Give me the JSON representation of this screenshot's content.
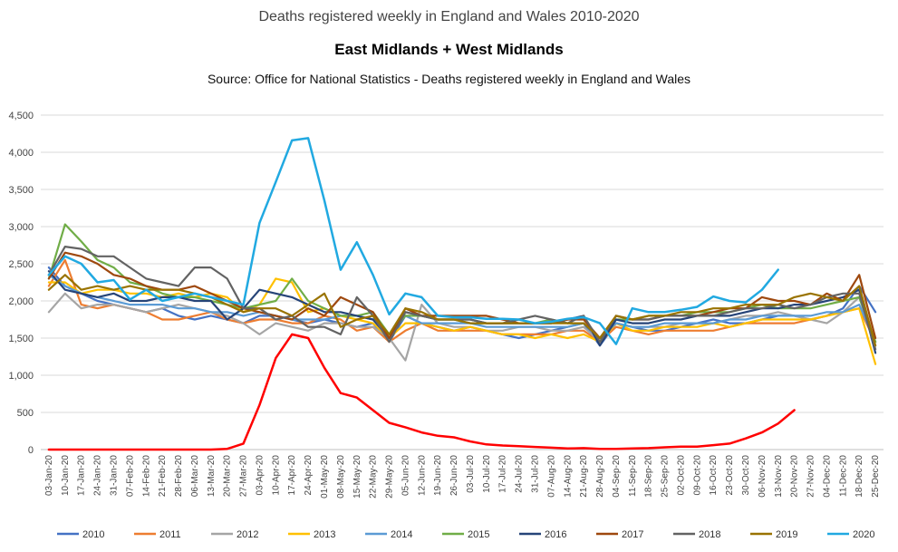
{
  "chart_data": {
    "type": "line",
    "title": "Deaths registered weekly in England and Wales 2010-2020",
    "subtitle": "East Midlands + West Midlands",
    "source": "Source: Office for National Statistics - Deaths registered weekly in England and Wales",
    "ylim": [
      0,
      4500
    ],
    "yticks": [
      "0",
      "500",
      "1,000",
      "1,500",
      "2,000",
      "2,500",
      "3,000",
      "3,500",
      "4,000",
      "4,500"
    ],
    "grid": true,
    "legend_position": "bottom",
    "categories": [
      "03-Jan-20",
      "10-Jan-20",
      "17-Jan-20",
      "24-Jan-20",
      "31-Jan-20",
      "07-Feb-20",
      "14-Feb-20",
      "21-Feb-20",
      "28-Feb-20",
      "06-Mar-20",
      "13-Mar-20",
      "20-Mar-20",
      "27-Mar-20",
      "03-Apr-20",
      "10-Apr-20",
      "17-Apr-20",
      "24-Apr-20",
      "01-May-20",
      "08-May-20",
      "15-May-20",
      "22-May-20",
      "29-May-20",
      "05-Jun-20",
      "12-Jun-20",
      "19-Jun-20",
      "26-Jun-20",
      "03-Jul-20",
      "10-Jul-20",
      "17-Jul-20",
      "24-Jul-20",
      "31-Jul-20",
      "07-Aug-20",
      "14-Aug-20",
      "21-Aug-20",
      "28-Aug-20",
      "04-Sep-20",
      "11-Sep-20",
      "18-Sep-20",
      "25-Sep-20",
      "02-Oct-20",
      "09-Oct-20",
      "16-Oct-20",
      "23-Oct-20",
      "30-Oct-20",
      "06-Nov-20",
      "13-Nov-20",
      "20-Nov-20",
      "27-Nov-20",
      "04-Dec-20",
      "11-Dec-20",
      "18-Dec-20",
      "25-Dec-20"
    ],
    "series": [
      {
        "name": "2010",
        "color": "#4472C4",
        "values": [
          2450,
          2200,
          2100,
          2000,
          1950,
          1900,
          1850,
          1900,
          1800,
          1750,
          1800,
          1750,
          1700,
          1800,
          1800,
          1750,
          1700,
          1750,
          1700,
          1650,
          1700,
          1450,
          1800,
          1700,
          1650,
          1600,
          1650,
          1600,
          1550,
          1500,
          1550,
          1600,
          1650,
          1700,
          1400,
          1700,
          1650,
          1600,
          1600,
          1650,
          1700,
          1750,
          1700,
          1700,
          1750,
          1800,
          1800,
          1750,
          1800,
          1900,
          2200,
          1850
        ]
      },
      {
        "name": "2011",
        "color": "#ED7D31",
        "values": [
          2200,
          2550,
          1950,
          1900,
          1950,
          1900,
          1850,
          1750,
          1750,
          1800,
          1850,
          1750,
          1700,
          1750,
          1750,
          1700,
          1700,
          1800,
          1750,
          1600,
          1650,
          1450,
          1600,
          1700,
          1600,
          1600,
          1600,
          1600,
          1550,
          1550,
          1550,
          1550,
          1600,
          1600,
          1450,
          1650,
          1600,
          1550,
          1600,
          1600,
          1600,
          1600,
          1650,
          1700,
          1700,
          1700,
          1700,
          1750,
          1800,
          1850,
          1900,
          1450
        ]
      },
      {
        "name": "2012",
        "color": "#A5A5A5",
        "values": [
          1850,
          2100,
          1900,
          1950,
          1950,
          1900,
          1850,
          1900,
          1950,
          1900,
          1850,
          1800,
          1700,
          1550,
          1700,
          1650,
          1600,
          1700,
          1700,
          1650,
          1650,
          1500,
          1200,
          1950,
          1700,
          1650,
          1650,
          1600,
          1600,
          1650,
          1650,
          1600,
          1600,
          1650,
          1450,
          1700,
          1650,
          1650,
          1650,
          1700,
          1700,
          1700,
          1750,
          1800,
          1800,
          1850,
          1800,
          1750,
          1700,
          1850,
          2050,
          1400
        ]
      },
      {
        "name": "2013",
        "color": "#FFC000",
        "values": [
          2250,
          2250,
          2100,
          2150,
          2150,
          2100,
          2100,
          2050,
          2100,
          2050,
          2100,
          2050,
          1850,
          1950,
          2300,
          2250,
          1850,
          1900,
          1800,
          1750,
          1700,
          1500,
          1700,
          1700,
          1650,
          1600,
          1650,
          1600,
          1550,
          1550,
          1500,
          1550,
          1500,
          1550,
          1450,
          1700,
          1600,
          1600,
          1650,
          1650,
          1650,
          1700,
          1650,
          1700,
          1750,
          1750,
          1750,
          1750,
          1800,
          1850,
          1900,
          1150
        ]
      },
      {
        "name": "2014",
        "color": "#5B9BD5",
        "values": [
          2350,
          2200,
          2100,
          2050,
          2000,
          1950,
          1950,
          1950,
          1900,
          1900,
          1850,
          1850,
          1800,
          1850,
          1800,
          1750,
          1750,
          1750,
          1800,
          1800,
          1750,
          1550,
          1800,
          1700,
          1700,
          1700,
          1700,
          1650,
          1650,
          1650,
          1650,
          1650,
          1650,
          1700,
          1500,
          1700,
          1650,
          1650,
          1700,
          1700,
          1700,
          1700,
          1750,
          1750,
          1800,
          1800,
          1800,
          1800,
          1850,
          1850,
          1950,
          1450
        ]
      },
      {
        "name": "2015",
        "color": "#70AD47",
        "values": [
          2300,
          3030,
          2800,
          2550,
          2450,
          2250,
          2200,
          2100,
          2050,
          2050,
          2000,
          1950,
          1900,
          1950,
          2000,
          2300,
          2000,
          1900,
          1800,
          1800,
          1850,
          1550,
          1800,
          1800,
          1750,
          1750,
          1700,
          1700,
          1700,
          1700,
          1700,
          1750,
          1700,
          1700,
          1500,
          1750,
          1750,
          1800,
          1800,
          1800,
          1850,
          1850,
          1850,
          1900,
          1950,
          1900,
          1900,
          1900,
          1950,
          2000,
          2050,
          1450
        ]
      },
      {
        "name": "2016",
        "color": "#264478",
        "values": [
          2400,
          2150,
          2100,
          2050,
          2100,
          2000,
          2000,
          2050,
          2050,
          2000,
          2000,
          1750,
          1900,
          2150,
          2100,
          2050,
          1950,
          1850,
          1850,
          1800,
          1750,
          1500,
          1850,
          1800,
          1750,
          1750,
          1750,
          1700,
          1700,
          1700,
          1700,
          1700,
          1750,
          1800,
          1400,
          1750,
          1700,
          1700,
          1750,
          1750,
          1800,
          1800,
          1800,
          1850,
          1900,
          1900,
          1950,
          1950,
          2000,
          2050,
          2150,
          1300
        ]
      },
      {
        "name": "2017",
        "color": "#9E480E",
        "values": [
          2300,
          2650,
          2600,
          2500,
          2350,
          2300,
          2200,
          2150,
          2150,
          2200,
          2100,
          2000,
          1900,
          1850,
          1800,
          1750,
          1900,
          1800,
          2050,
          1950,
          1850,
          1500,
          1900,
          1800,
          1800,
          1800,
          1800,
          1800,
          1750,
          1700,
          1700,
          1700,
          1750,
          1750,
          1500,
          1800,
          1750,
          1750,
          1800,
          1800,
          1800,
          1850,
          1900,
          1900,
          2050,
          2000,
          2000,
          1950,
          2100,
          2000,
          2350,
          1500
        ]
      },
      {
        "name": "2018",
        "color": "#636363",
        "values": [
          2350,
          2730,
          2700,
          2600,
          2600,
          2450,
          2300,
          2250,
          2200,
          2450,
          2450,
          2300,
          1900,
          1900,
          1750,
          1800,
          1650,
          1650,
          1550,
          2050,
          1800,
          1450,
          1850,
          1800,
          1750,
          1750,
          1750,
          1700,
          1700,
          1750,
          1800,
          1750,
          1700,
          1800,
          1450,
          1800,
          1750,
          1750,
          1800,
          1800,
          1800,
          1800,
          1850,
          1900,
          1900,
          1950,
          1900,
          1950,
          2050,
          2100,
          2100,
          1350
        ]
      },
      {
        "name": "2019",
        "color": "#997300",
        "values": [
          2150,
          2350,
          2150,
          2200,
          2150,
          2200,
          2150,
          2150,
          2150,
          2100,
          2050,
          1950,
          1850,
          1900,
          1900,
          1800,
          1950,
          2100,
          1650,
          1750,
          1800,
          1550,
          1900,
          1850,
          1750,
          1750,
          1700,
          1700,
          1700,
          1700,
          1700,
          1700,
          1700,
          1700,
          1500,
          1800,
          1750,
          1800,
          1800,
          1850,
          1850,
          1900,
          1900,
          1950,
          1950,
          1950,
          2050,
          2100,
          2050,
          2000,
          2200,
          1400
        ]
      },
      {
        "name": "2020",
        "color": "#21A9E1",
        "values": [
          2350,
          2600,
          2500,
          2250,
          2280,
          2020,
          2150,
          2000,
          2050,
          2100,
          2050,
          2000,
          1950,
          3050,
          3600,
          4160,
          4190,
          3350,
          2420,
          2790,
          2350,
          1820,
          2100,
          2050,
          1800,
          1780,
          1780,
          1760,
          1760,
          1750,
          1700,
          1720,
          1760,
          1780,
          1700,
          1420,
          1900,
          1850,
          1850,
          1880,
          1920,
          2060,
          2000,
          1980,
          2150,
          2420,
          null,
          null,
          null,
          null,
          null,
          null
        ]
      },
      {
        "name": "COVID-19 mentioned",
        "color": "#FF0000",
        "values": [
          0,
          0,
          0,
          0,
          0,
          0,
          0,
          0,
          0,
          0,
          0,
          10,
          80,
          600,
          1230,
          1550,
          1500,
          1100,
          760,
          700,
          530,
          360,
          300,
          230,
          185,
          165,
          110,
          70,
          55,
          45,
          35,
          25,
          15,
          20,
          10,
          10,
          15,
          20,
          30,
          40,
          40,
          60,
          80,
          150,
          230,
          350,
          530,
          null,
          null,
          null,
          null,
          null
        ]
      }
    ]
  }
}
